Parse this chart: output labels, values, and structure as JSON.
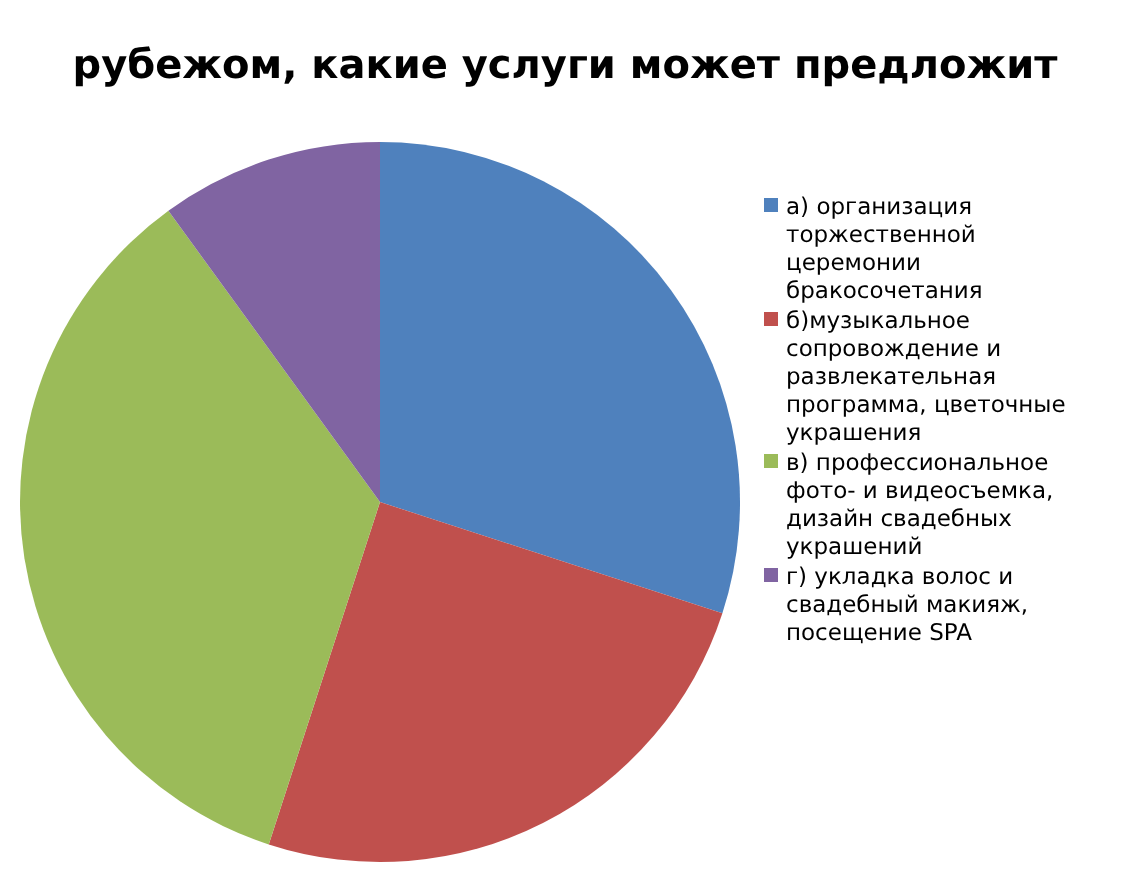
{
  "chart_data": {
    "type": "pie",
    "title": "рубежом, какие услуги может предложит",
    "categories": [
      "а) организация торжественной церемонии бракосочетания",
      "б)музыкальное сопровождение и развлекательная программа, цветочные украшения",
      "в) профессиональное фото- и видеосъемка, дизайн свадебных украшений",
      "г) укладка волос и свадебный макияж, посещение SPA"
    ],
    "values": [
      30,
      25,
      35,
      10
    ],
    "colors": [
      "#4f81bd",
      "#c0504d",
      "#9bbb59",
      "#8064a2"
    ],
    "legend": "right"
  }
}
